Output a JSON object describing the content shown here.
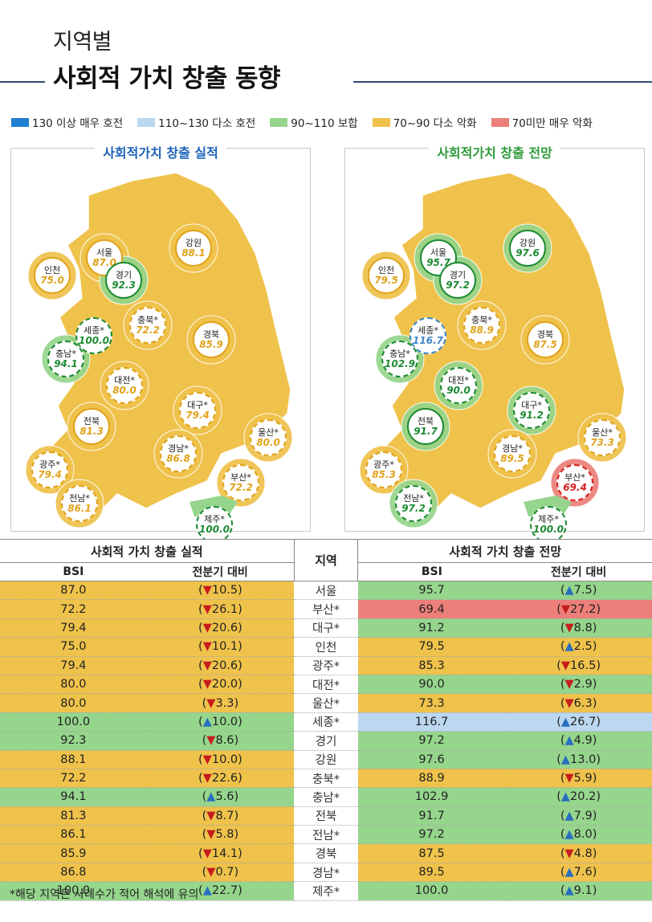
{
  "header": {
    "sub": "지역별",
    "main": "사회적 가치 창출 동향"
  },
  "legend": [
    {
      "label": "130 이상 매우 호전",
      "color": "#1f7fd1"
    },
    {
      "label": "110~130 다소 호전",
      "color": "#bcd7f0"
    },
    {
      "label": "90~110 보합",
      "color": "#95d58c"
    },
    {
      "label": "70~90 다소 악화",
      "color": "#efc24b"
    },
    {
      "label": "70미만 매우 악화",
      "color": "#ec7f79"
    }
  ],
  "maps": {
    "actual_title": "사회적가치 창출 실적",
    "forecast_title": "사회적가치 창출 전망"
  },
  "table": {
    "left_group": "사회적 가치 창출 실적",
    "right_group": "사회적 가치 창출 전망",
    "region_header": "지역",
    "bsi_header": "BSI",
    "change_header": "전분기 대비"
  },
  "footnote": "*해당 지역은 사례수가 적어 해석에 유의",
  "chart_data": {
    "type": "table",
    "regions": [
      "서울",
      "부산*",
      "대구*",
      "인천",
      "광주*",
      "대전*",
      "울산*",
      "세종*",
      "경기",
      "강원",
      "충북*",
      "충남*",
      "전북",
      "전남*",
      "경북",
      "경남*",
      "제주*"
    ],
    "actual_bsi": [
      87.0,
      72.2,
      79.4,
      75.0,
      79.4,
      80.0,
      80.0,
      100.0,
      92.3,
      88.1,
      72.2,
      94.1,
      81.3,
      86.1,
      85.9,
      86.8,
      100.0
    ],
    "actual_change": [
      -10.5,
      -26.1,
      -20.6,
      -10.1,
      -20.6,
      -20.0,
      -3.3,
      10.0,
      -8.6,
      -10.0,
      -22.6,
      5.6,
      -8.7,
      -5.8,
      -14.1,
      -0.7,
      22.7
    ],
    "forecast_bsi": [
      95.7,
      69.4,
      91.2,
      79.5,
      85.3,
      90.0,
      73.3,
      116.7,
      97.2,
      97.6,
      88.9,
      102.9,
      91.7,
      97.2,
      87.5,
      89.5,
      100.0
    ],
    "forecast_change": [
      7.5,
      -27.2,
      -8.8,
      2.5,
      -16.5,
      -2.9,
      -6.3,
      26.7,
      4.9,
      13.0,
      -5.9,
      20.2,
      7.9,
      8.0,
      -4.8,
      7.6,
      9.1
    ]
  }
}
